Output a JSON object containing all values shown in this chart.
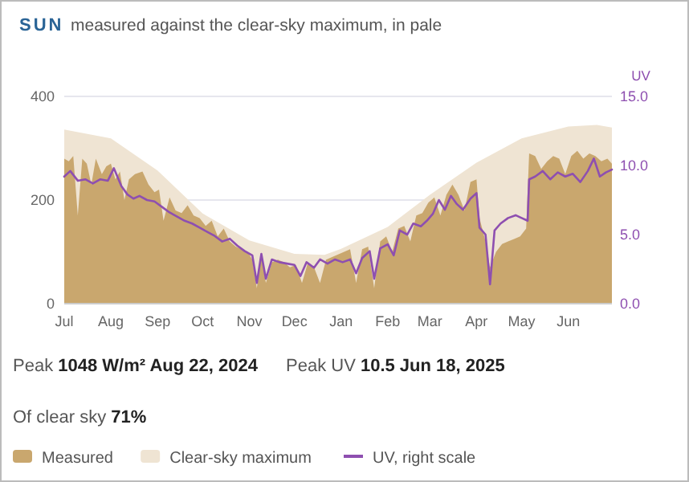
{
  "chart_data": {
    "type": "area",
    "title": "SUN",
    "subtitle": "measured against the clear-sky maximum, in pale",
    "y2label": "UV",
    "xlim": [
      "2024-07-01",
      "2025-06-30"
    ],
    "xticks": [
      {
        "value": "2024-07-01",
        "label": "Jul"
      },
      {
        "value": "2024-08-01",
        "label": "Aug"
      },
      {
        "value": "2024-09-01",
        "label": "Sep"
      },
      {
        "value": "2024-10-01",
        "label": "Oct"
      },
      {
        "value": "2024-11-01",
        "label": "Nov"
      },
      {
        "value": "2024-12-01",
        "label": "Dec"
      },
      {
        "value": "2025-01-01",
        "label": "Jan"
      },
      {
        "value": "2025-02-01",
        "label": "Feb"
      },
      {
        "value": "2025-03-01",
        "label": "Mar"
      },
      {
        "value": "2025-04-01",
        "label": "Apr"
      },
      {
        "value": "2025-05-01",
        "label": "May"
      },
      {
        "value": "2025-06-01",
        "label": "Jun"
      }
    ],
    "ylim": [
      0,
      400
    ],
    "yticks": [
      0,
      200,
      400
    ],
    "y2lim": [
      0,
      15
    ],
    "y2ticks": [
      {
        "value": 0,
        "label": "0.0"
      },
      {
        "value": 5,
        "label": "5.0"
      },
      {
        "value": 10,
        "label": "10.0"
      },
      {
        "value": 15,
        "label": "15.0"
      }
    ],
    "grid": "y",
    "legend": "bottom",
    "annotations": [
      "Peak 1048 W/m² Aug 22, 2024",
      "Peak UV 10.5 Jun 18, 2025",
      "Of clear sky 71%"
    ],
    "series": [
      {
        "name": "Clear-sky maximum",
        "color": "#efe4d3",
        "x": [
          "2024-07-01",
          "2024-08-01",
          "2024-09-01",
          "2024-10-01",
          "2024-11-01",
          "2024-12-01",
          "2024-12-21",
          "2025-01-01",
          "2025-02-01",
          "2025-03-01",
          "2025-04-01",
          "2025-05-01",
          "2025-06-01",
          "2025-06-20",
          "2025-06-30"
        ],
        "values": [
          336,
          319,
          257,
          174,
          122,
          96,
          94,
          106,
          148,
          210,
          272,
          319,
          342,
          345,
          340
        ]
      },
      {
        "name": "Measured",
        "color": "#c9a76e",
        "x": [
          "2024-07-01",
          "2024-07-04",
          "2024-07-07",
          "2024-07-10",
          "2024-07-13",
          "2024-07-16",
          "2024-07-19",
          "2024-07-22",
          "2024-07-26",
          "2024-07-29",
          "2024-08-01",
          "2024-08-04",
          "2024-08-07",
          "2024-08-10",
          "2024-08-13",
          "2024-08-17",
          "2024-08-22",
          "2024-08-26",
          "2024-08-30",
          "2024-09-02",
          "2024-09-05",
          "2024-09-09",
          "2024-09-13",
          "2024-09-17",
          "2024-09-21",
          "2024-09-25",
          "2024-09-29",
          "2024-10-03",
          "2024-10-07",
          "2024-10-11",
          "2024-10-15",
          "2024-10-19",
          "2024-10-23",
          "2024-10-27",
          "2024-10-31",
          "2024-11-03",
          "2024-11-06",
          "2024-11-09",
          "2024-11-12",
          "2024-11-16",
          "2024-11-20",
          "2024-11-24",
          "2024-11-28",
          "2024-12-02",
          "2024-12-06",
          "2024-12-10",
          "2024-12-14",
          "2024-12-18",
          "2024-12-22",
          "2024-12-26",
          "2024-12-30",
          "2025-01-03",
          "2025-01-07",
          "2025-01-11",
          "2025-01-15",
          "2025-01-19",
          "2025-01-23",
          "2025-01-27",
          "2025-01-31",
          "2025-02-04",
          "2025-02-08",
          "2025-02-12",
          "2025-02-16",
          "2025-02-20",
          "2025-02-24",
          "2025-02-28",
          "2025-03-04",
          "2025-03-08",
          "2025-03-12",
          "2025-03-16",
          "2025-03-20",
          "2025-03-24",
          "2025-03-28",
          "2025-04-01",
          "2025-04-03",
          "2025-04-07",
          "2025-04-10",
          "2025-04-14",
          "2025-04-18",
          "2025-04-22",
          "2025-04-26",
          "2025-04-30",
          "2025-05-04",
          "2025-05-06",
          "2025-05-10",
          "2025-05-14",
          "2025-05-18",
          "2025-05-22",
          "2025-05-26",
          "2025-05-30",
          "2025-06-03",
          "2025-06-07",
          "2025-06-11",
          "2025-06-15",
          "2025-06-19",
          "2025-06-23",
          "2025-06-27",
          "2025-06-30"
        ],
        "values": [
          280,
          275,
          285,
          170,
          280,
          270,
          230,
          280,
          250,
          265,
          270,
          240,
          255,
          200,
          240,
          250,
          255,
          230,
          215,
          220,
          160,
          205,
          180,
          175,
          190,
          170,
          165,
          150,
          160,
          130,
          145,
          120,
          110,
          105,
          100,
          85,
          30,
          95,
          40,
          80,
          85,
          80,
          70,
          75,
          40,
          80,
          70,
          40,
          85,
          90,
          95,
          100,
          105,
          40,
          105,
          110,
          30,
          120,
          130,
          100,
          145,
          150,
          120,
          170,
          175,
          195,
          205,
          170,
          210,
          230,
          210,
          180,
          235,
          240,
          165,
          120,
          70,
          100,
          115,
          120,
          125,
          130,
          145,
          290,
          285,
          260,
          275,
          285,
          280,
          250,
          285,
          295,
          280,
          290,
          285,
          275,
          280,
          270
        ]
      },
      {
        "name": "UV, right scale",
        "type": "line",
        "axis": "y2",
        "color": "#8e4fb0",
        "x": [
          "2024-07-01",
          "2024-07-05",
          "2024-07-10",
          "2024-07-15",
          "2024-07-20",
          "2024-07-25",
          "2024-07-30",
          "2024-08-03",
          "2024-08-08",
          "2024-08-12",
          "2024-08-16",
          "2024-08-20",
          "2024-08-25",
          "2024-08-30",
          "2024-09-04",
          "2024-09-09",
          "2024-09-14",
          "2024-09-19",
          "2024-09-24",
          "2024-09-29",
          "2024-10-04",
          "2024-10-09",
          "2024-10-14",
          "2024-10-19",
          "2024-10-24",
          "2024-10-29",
          "2024-11-03",
          "2024-11-06",
          "2024-11-09",
          "2024-11-12",
          "2024-11-16",
          "2024-11-21",
          "2024-11-26",
          "2024-12-01",
          "2024-12-05",
          "2024-12-09",
          "2024-12-14",
          "2024-12-18",
          "2024-12-23",
          "2024-12-28",
          "2025-01-02",
          "2025-01-07",
          "2025-01-11",
          "2025-01-15",
          "2025-01-20",
          "2025-01-23",
          "2025-01-27",
          "2025-02-01",
          "2025-02-05",
          "2025-02-09",
          "2025-02-14",
          "2025-02-18",
          "2025-02-23",
          "2025-02-27",
          "2025-03-03",
          "2025-03-07",
          "2025-03-11",
          "2025-03-15",
          "2025-03-19",
          "2025-03-23",
          "2025-03-28",
          "2025-04-01",
          "2025-04-03",
          "2025-04-07",
          "2025-04-10",
          "2025-04-13",
          "2025-04-17",
          "2025-04-22",
          "2025-04-27",
          "2025-05-01",
          "2025-05-05",
          "2025-05-06",
          "2025-05-10",
          "2025-05-15",
          "2025-05-20",
          "2025-05-25",
          "2025-05-30",
          "2025-06-04",
          "2025-06-09",
          "2025-06-14",
          "2025-06-18",
          "2025-06-22",
          "2025-06-26",
          "2025-06-30"
        ],
        "values": [
          9.2,
          9.6,
          8.9,
          9.0,
          8.7,
          9.0,
          8.9,
          9.8,
          8.5,
          7.9,
          7.6,
          7.8,
          7.5,
          7.4,
          7.0,
          6.6,
          6.3,
          6.0,
          5.8,
          5.5,
          5.2,
          4.9,
          4.5,
          4.7,
          4.2,
          3.8,
          3.5,
          1.5,
          3.6,
          1.8,
          3.2,
          3.0,
          2.9,
          2.8,
          2.0,
          3.0,
          2.6,
          3.2,
          2.9,
          3.2,
          3.0,
          3.2,
          2.2,
          3.3,
          3.8,
          1.8,
          4.0,
          4.3,
          3.5,
          5.3,
          5.0,
          5.8,
          5.6,
          6.0,
          6.5,
          7.5,
          6.8,
          7.8,
          7.2,
          6.8,
          7.6,
          8.0,
          5.5,
          5.0,
          1.4,
          5.3,
          5.8,
          6.2,
          6.4,
          6.2,
          6.0,
          9.0,
          9.2,
          9.6,
          9.0,
          9.5,
          9.2,
          9.4,
          8.8,
          9.6,
          10.5,
          9.2,
          9.5,
          9.7
        ]
      }
    ]
  }
}
